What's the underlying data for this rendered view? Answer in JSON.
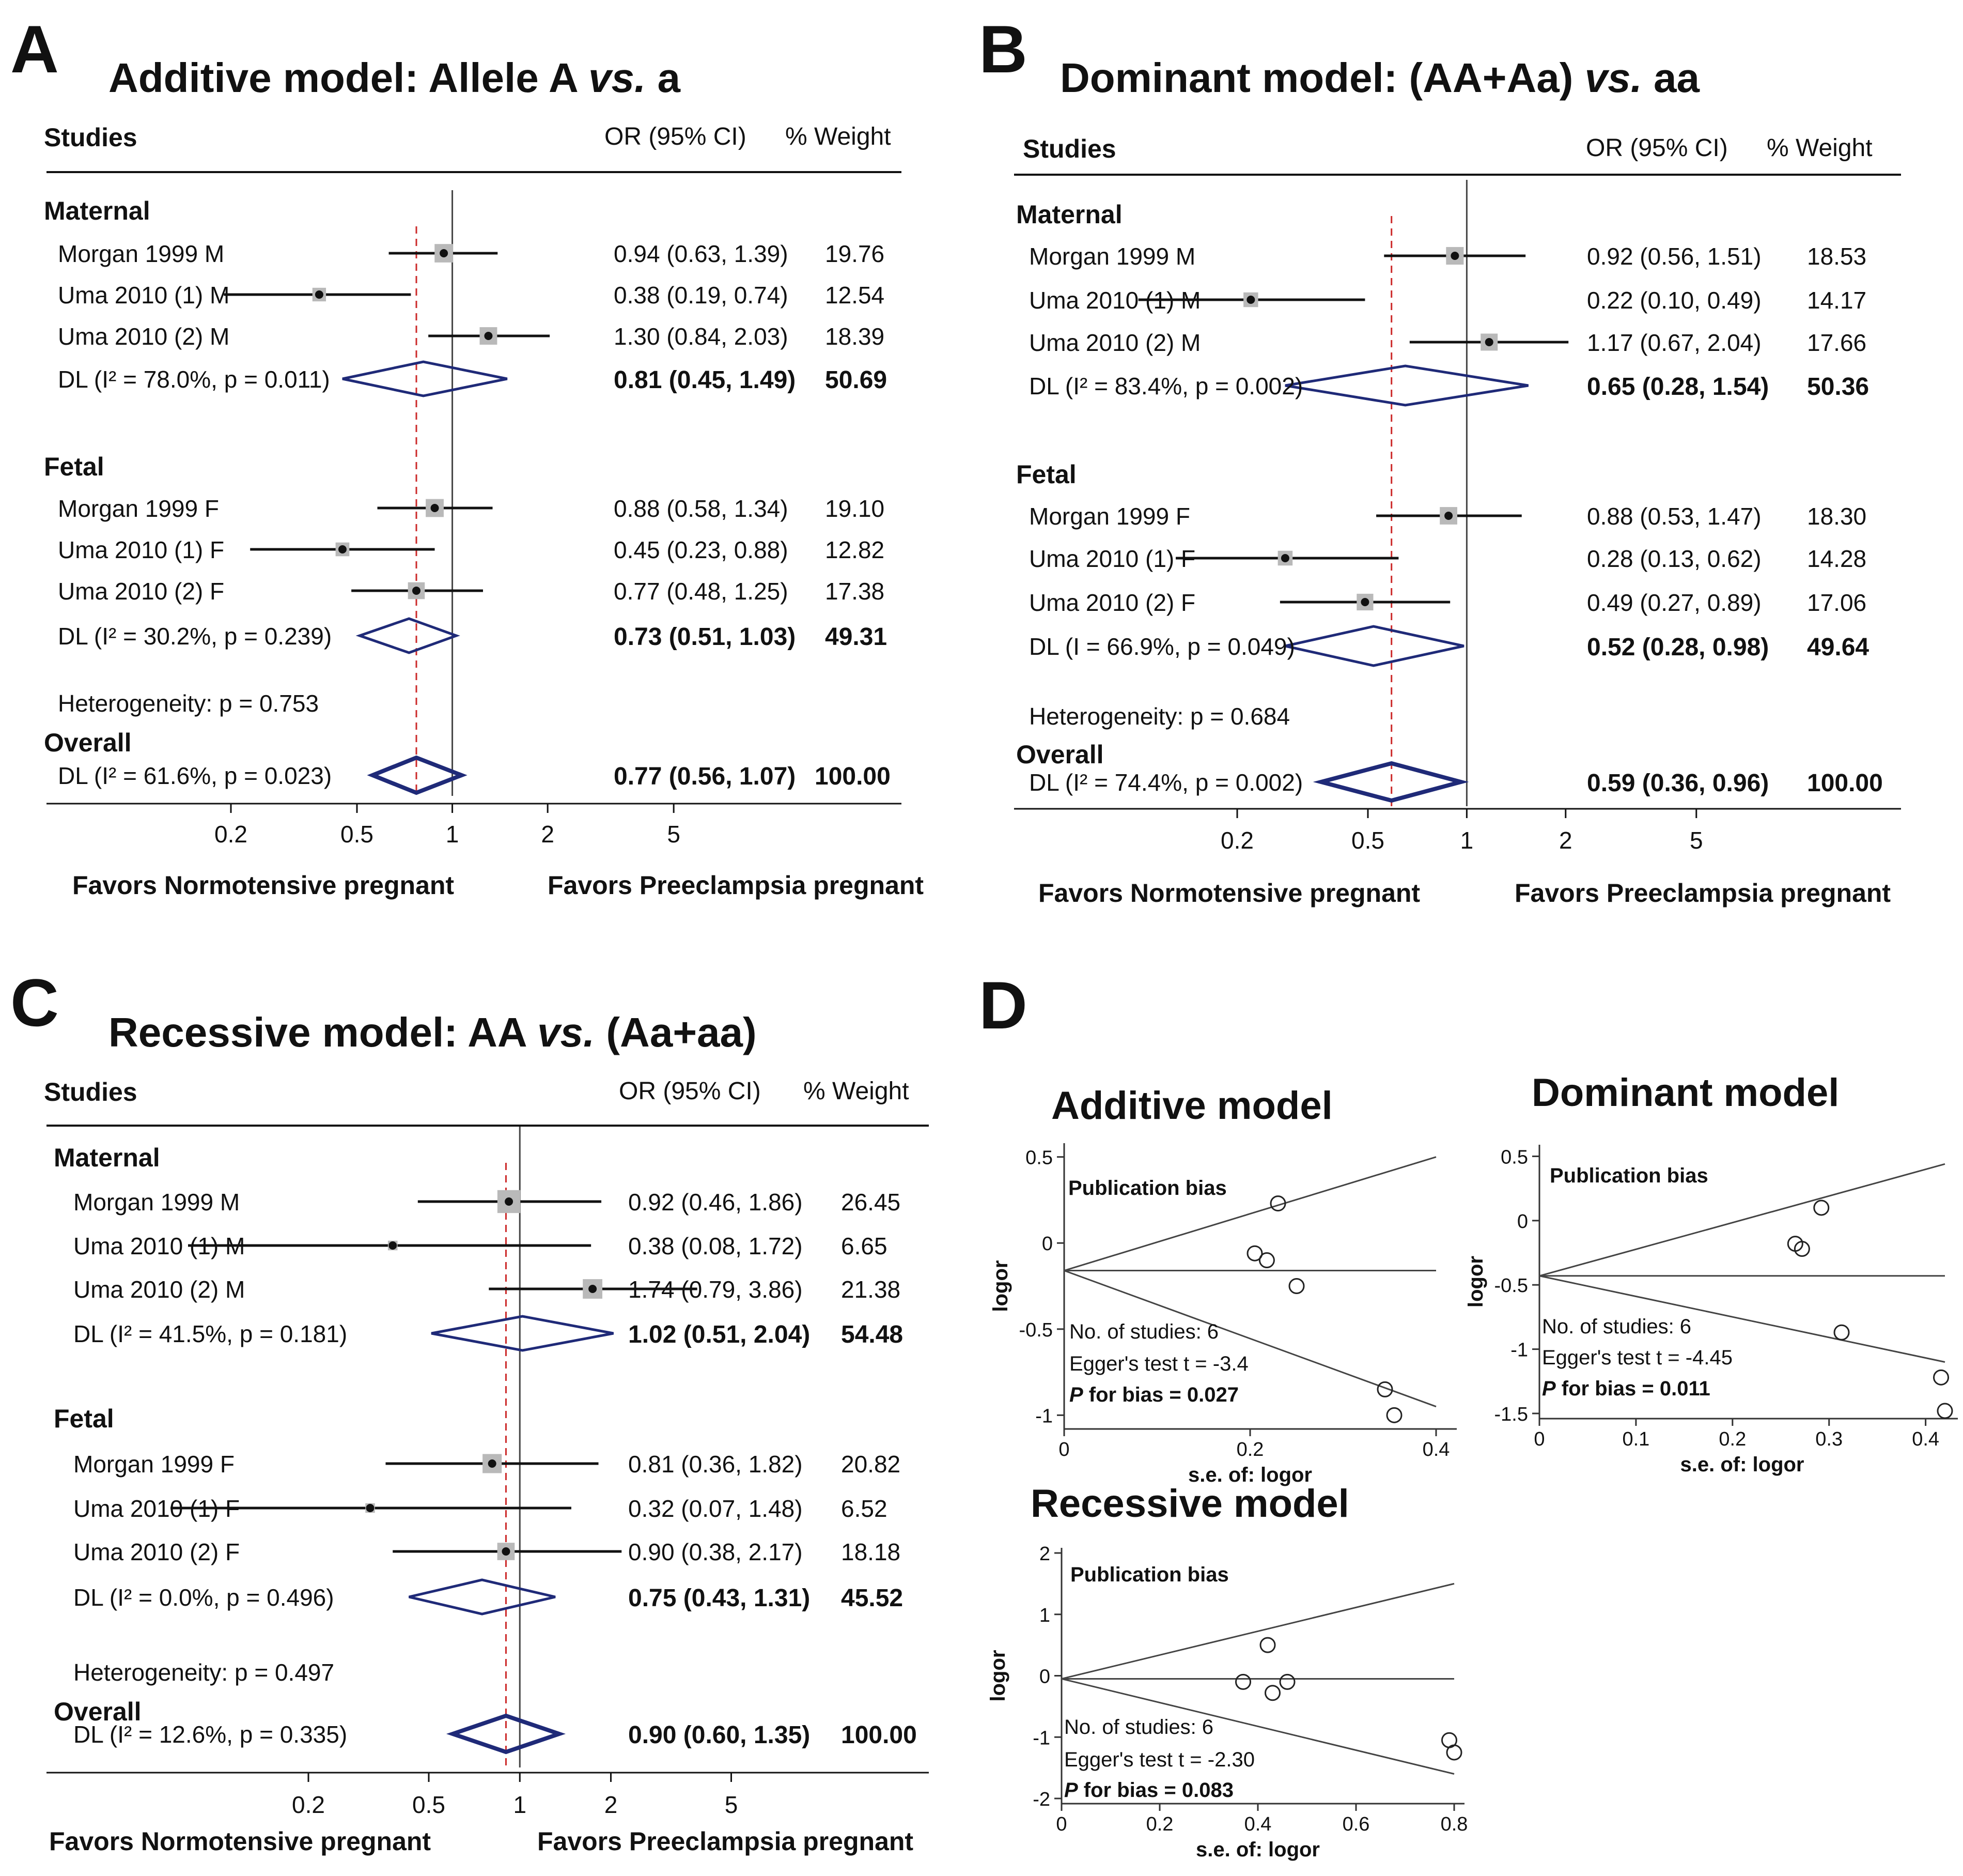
{
  "figure": {
    "panels": [
      {
        "label": "A",
        "title_prefix": "Additive model: Allele A ",
        "title_vs": "vs.",
        "title_suffix": " a",
        "header": {
          "studies": "Studies",
          "or_ci": "OR (95% CI)",
          "weight": "% Weight"
        }
      },
      {
        "label": "B",
        "title_prefix": "Dominant model: (AA+Aa) ",
        "title_vs": "vs.",
        "title_suffix": " aa",
        "header": {
          "studies": "Studies",
          "or_ci": "OR (95% CI)",
          "weight": "% Weight"
        }
      },
      {
        "label": "C",
        "title_prefix": "Recessive model: AA ",
        "title_vs": "vs.",
        "title_suffix": " (Aa+aa)",
        "header": {
          "studies": "Studies",
          "or_ci": "OR (95% CI)",
          "weight": "% Weight"
        }
      },
      {
        "label": "D"
      }
    ]
  },
  "chart_data": [
    {
      "type": "forest",
      "panel": "A",
      "title": "Additive model: Allele A vs. a",
      "xscale": "log",
      "xticks": [
        0.2,
        0.5,
        1,
        2,
        5
      ],
      "xtick_labels": [
        "0.2",
        "0.5",
        "1",
        "2",
        "5"
      ],
      "favors_left": "Favors Normotensive pregnant",
      "favors_right": "Favors Preeclampsia pregnant",
      "overall_dashed_line": 0.77,
      "groups": [
        {
          "name": "Maternal",
          "studies": [
            {
              "name": "Morgan 1999 M",
              "or": 0.94,
              "lo": 0.63,
              "hi": 1.39,
              "ci_text": "0.94 (0.63, 1.39)",
              "weight": "19.76"
            },
            {
              "name": "Uma 2010 (1) M",
              "or": 0.38,
              "lo": 0.19,
              "hi": 0.74,
              "ci_text": "0.38 (0.19, 0.74)",
              "weight": "12.54"
            },
            {
              "name": "Uma 2010 (2) M",
              "or": 1.3,
              "lo": 0.84,
              "hi": 2.03,
              "ci_text": "1.30 (0.84, 2.03)",
              "weight": "18.39"
            }
          ],
          "pooled": {
            "label": "DL (I² = 78.0%, p = 0.011)",
            "or": 0.81,
            "lo": 0.45,
            "hi": 1.49,
            "ci_text": "0.81 (0.45, 1.49)",
            "weight": "50.69"
          }
        },
        {
          "name": "Fetal",
          "studies": [
            {
              "name": "Morgan 1999 F",
              "or": 0.88,
              "lo": 0.58,
              "hi": 1.34,
              "ci_text": "0.88 (0.58, 1.34)",
              "weight": "19.10"
            },
            {
              "name": "Uma 2010 (1) F",
              "or": 0.45,
              "lo": 0.23,
              "hi": 0.88,
              "ci_text": "0.45 (0.23, 0.88)",
              "weight": "12.82"
            },
            {
              "name": "Uma 2010 (2) F",
              "or": 0.77,
              "lo": 0.48,
              "hi": 1.25,
              "ci_text": "0.77 (0.48, 1.25)",
              "weight": "17.38"
            }
          ],
          "pooled": {
            "label": "DL (I² = 30.2%, p = 0.239)",
            "or": 0.73,
            "lo": 0.51,
            "hi": 1.03,
            "ci_text": "0.73 (0.51, 1.03)",
            "weight": "49.31"
          }
        }
      ],
      "heterogeneity": "Heterogeneity: p = 0.753",
      "overall": {
        "name": "Overall",
        "label": "DL (I² = 61.6%, p = 0.023)",
        "or": 0.77,
        "lo": 0.56,
        "hi": 1.07,
        "ci_text": "0.77 (0.56, 1.07)",
        "weight": "100.00"
      }
    },
    {
      "type": "forest",
      "panel": "B",
      "title": "Dominant model: (AA+Aa) vs. aa",
      "xscale": "log",
      "xticks": [
        0.2,
        0.5,
        1,
        2,
        5
      ],
      "xtick_labels": [
        "0.2",
        "0.5",
        "1",
        "2",
        "5"
      ],
      "favors_left": "Favors Normotensive pregnant",
      "favors_right": "Favors Preeclampsia pregnant",
      "overall_dashed_line": 0.59,
      "groups": [
        {
          "name": "Maternal",
          "studies": [
            {
              "name": "Morgan 1999 M",
              "or": 0.92,
              "lo": 0.56,
              "hi": 1.51,
              "ci_text": "0.92 (0.56, 1.51)",
              "weight": "18.53"
            },
            {
              "name": "Uma 2010 (1) M",
              "or": 0.22,
              "lo": 0.1,
              "hi": 0.49,
              "ci_text": "0.22 (0.10, 0.49)",
              "weight": "14.17"
            },
            {
              "name": "Uma 2010 (2) M",
              "or": 1.17,
              "lo": 0.67,
              "hi": 2.04,
              "ci_text": "1.17 (0.67, 2.04)",
              "weight": "17.66"
            }
          ],
          "pooled": {
            "label": "DL (I² = 83.4%, p = 0.002)",
            "or": 0.65,
            "lo": 0.28,
            "hi": 1.54,
            "ci_text": "0.65 (0.28, 1.54)",
            "weight": "50.36"
          }
        },
        {
          "name": "Fetal",
          "studies": [
            {
              "name": "Morgan 1999 F",
              "or": 0.88,
              "lo": 0.53,
              "hi": 1.47,
              "ci_text": "0.88 (0.53, 1.47)",
              "weight": "18.30"
            },
            {
              "name": "Uma 2010 (1) F",
              "or": 0.28,
              "lo": 0.13,
              "hi": 0.62,
              "ci_text": "0.28 (0.13, 0.62)",
              "weight": "14.28"
            },
            {
              "name": "Uma 2010 (2) F",
              "or": 0.49,
              "lo": 0.27,
              "hi": 0.89,
              "ci_text": "0.49 (0.27, 0.89)",
              "weight": "17.06"
            }
          ],
          "pooled": {
            "label": "DL (I = 66.9%, p = 0.049)",
            "or": 0.52,
            "lo": 0.28,
            "hi": 0.98,
            "ci_text": "0.52 (0.28, 0.98)",
            "weight": "49.64"
          }
        }
      ],
      "heterogeneity": "Heterogeneity: p = 0.684",
      "overall": {
        "name": "Overall",
        "label": "DL (I² = 74.4%, p = 0.002)",
        "or": 0.59,
        "lo": 0.36,
        "hi": 0.96,
        "ci_text": "0.59 (0.36, 0.96)",
        "weight": "100.00"
      }
    },
    {
      "type": "forest",
      "panel": "C",
      "title": "Recessive model: AA vs. (Aa+aa)",
      "xscale": "log",
      "xticks": [
        0.2,
        0.5,
        1,
        2,
        5
      ],
      "xtick_labels": [
        "0.2",
        "0.5",
        "1",
        "2",
        "5"
      ],
      "favors_left": "Favors Normotensive pregnant",
      "favors_right": "Favors Preeclampsia pregnant",
      "overall_dashed_line": 0.9,
      "groups": [
        {
          "name": "Maternal",
          "studies": [
            {
              "name": "Morgan 1999 M",
              "or": 0.92,
              "lo": 0.46,
              "hi": 1.86,
              "ci_text": "0.92 (0.46, 1.86)",
              "weight": "26.45"
            },
            {
              "name": "Uma 2010 (1) M",
              "or": 0.38,
              "lo": 0.08,
              "hi": 1.72,
              "ci_text": "0.38 (0.08, 1.72)",
              "weight": "6.65"
            },
            {
              "name": "Uma 2010 (2) M",
              "or": 1.74,
              "lo": 0.79,
              "hi": 3.86,
              "ci_text": "1.74 (0.79, 3.86)",
              "weight": "21.38"
            }
          ],
          "pooled": {
            "label": "DL (I² = 41.5%, p = 0.181)",
            "or": 1.02,
            "lo": 0.51,
            "hi": 2.04,
            "ci_text": "1.02 (0.51, 2.04)",
            "weight": "54.48"
          }
        },
        {
          "name": "Fetal",
          "studies": [
            {
              "name": "Morgan 1999 F",
              "or": 0.81,
              "lo": 0.36,
              "hi": 1.82,
              "ci_text": "0.81 (0.36, 1.82)",
              "weight": "20.82"
            },
            {
              "name": "Uma 2010 (1) F",
              "or": 0.32,
              "lo": 0.07,
              "hi": 1.48,
              "ci_text": "0.32 (0.07, 1.48)",
              "weight": "6.52"
            },
            {
              "name": "Uma 2010 (2) F",
              "or": 0.9,
              "lo": 0.38,
              "hi": 2.17,
              "ci_text": "0.90 (0.38, 2.17)",
              "weight": "18.18"
            }
          ],
          "pooled": {
            "label": "DL (I² = 0.0%, p = 0.496)",
            "or": 0.75,
            "lo": 0.43,
            "hi": 1.31,
            "ci_text": "0.75 (0.43, 1.31)",
            "weight": "45.52"
          }
        }
      ],
      "heterogeneity": "Heterogeneity: p = 0.497",
      "overall": {
        "name": "Overall",
        "label": "DL (I² = 12.6%, p = 0.335)",
        "or": 0.9,
        "lo": 0.6,
        "hi": 1.35,
        "ci_text": "0.90 (0.60, 1.35)",
        "weight": "100.00"
      }
    },
    {
      "type": "scatter",
      "panel": "D",
      "title": "Additive model",
      "subtitle": "Publication bias",
      "xlabel": "s.e. of: logor",
      "ylabel": "logor",
      "xlim": [
        0,
        0.4
      ],
      "ylim": [
        -1.05,
        0.55
      ],
      "xticks": [
        0,
        0.2,
        0.4
      ],
      "xtick_labels": [
        "0",
        "0.2",
        "0.4"
      ],
      "yticks": [
        -1,
        -0.5,
        0,
        0.5
      ],
      "ytick_labels": [
        "-1",
        "-0.5",
        "0",
        "0.5"
      ],
      "points": [
        {
          "x": 0.23,
          "y": 0.23
        },
        {
          "x": 0.205,
          "y": -0.06
        },
        {
          "x": 0.218,
          "y": -0.1
        },
        {
          "x": 0.25,
          "y": -0.25
        },
        {
          "x": 0.345,
          "y": -0.85
        },
        {
          "x": 0.355,
          "y": -1.0
        }
      ],
      "regression": {
        "intercept": -0.16,
        "upper_end": [
          0.4,
          0.5
        ],
        "lower_end": [
          0.4,
          -0.95
        ]
      },
      "annotations": {
        "n": "No. of studies: 6",
        "egger": "Egger's test t = -3.4",
        "p_prefix": "P",
        "p_suffix": " for bias = 0.027"
      }
    },
    {
      "type": "scatter",
      "panel": "D",
      "title": "Dominant model",
      "subtitle": "Publication bias",
      "xlabel": "s.e. of: logor",
      "ylabel": "logor",
      "xlim": [
        0,
        0.42
      ],
      "ylim": [
        -1.5,
        0.55
      ],
      "xticks": [
        0,
        0.1,
        0.2,
        0.3,
        0.4
      ],
      "xtick_labels": [
        "0",
        "0.1",
        "0.2",
        "0.3",
        "0.4"
      ],
      "yticks": [
        -1.5,
        -1,
        -0.5,
        0,
        0.5
      ],
      "ytick_labels": [
        "-1.5",
        "-1",
        "-0.5",
        "0",
        "0.5"
      ],
      "points": [
        {
          "x": 0.265,
          "y": -0.18
        },
        {
          "x": 0.272,
          "y": -0.22
        },
        {
          "x": 0.292,
          "y": 0.1
        },
        {
          "x": 0.313,
          "y": -0.87
        },
        {
          "x": 0.416,
          "y": -1.22
        },
        {
          "x": 0.42,
          "y": -1.48
        }
      ],
      "regression": {
        "intercept": -0.43,
        "upper_end": [
          0.42,
          0.44
        ],
        "lower_end": [
          0.42,
          -1.1
        ]
      },
      "annotations": {
        "n": "No. of studies: 6",
        "egger": "Egger's test t = -4.45",
        "p_prefix": "P",
        "p_suffix": " for bias = 0.011"
      }
    },
    {
      "type": "scatter",
      "panel": "D",
      "title": "Recessive model",
      "subtitle": "Publication bias",
      "xlabel": "s.e. of: logor",
      "ylabel": "logor",
      "xlim": [
        0,
        0.8
      ],
      "ylim": [
        -2,
        2
      ],
      "xticks": [
        0,
        0.2,
        0.4,
        0.6,
        0.8
      ],
      "xtick_labels": [
        "0",
        "0.2",
        "0.4",
        "0.6",
        "0.8"
      ],
      "yticks": [
        -2,
        -1,
        0,
        1,
        2
      ],
      "ytick_labels": [
        "-2",
        "-1",
        "0",
        "1",
        "2"
      ],
      "points": [
        {
          "x": 0.37,
          "y": -0.1
        },
        {
          "x": 0.42,
          "y": 0.5
        },
        {
          "x": 0.43,
          "y": -0.28
        },
        {
          "x": 0.46,
          "y": -0.1
        },
        {
          "x": 0.79,
          "y": -1.05
        },
        {
          "x": 0.8,
          "y": -1.25
        }
      ],
      "regression": {
        "intercept": -0.05,
        "upper_end": [
          0.8,
          1.5
        ],
        "lower_end": [
          0.8,
          -1.6
        ]
      },
      "annotations": {
        "n": "No. of studies: 6",
        "egger": "Egger's test t = -2.30",
        "p_prefix": "P",
        "p_suffix": " for bias = 0.083"
      }
    }
  ]
}
